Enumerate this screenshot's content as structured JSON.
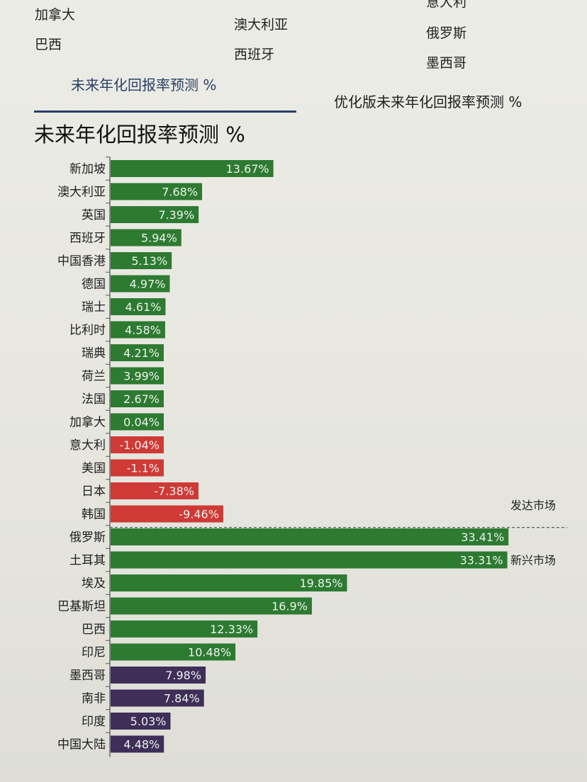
{
  "legend_labels": [
    {
      "text": "加拿大",
      "col": 0,
      "row": 0
    },
    {
      "text": "巴西",
      "col": 0,
      "row": 1
    },
    {
      "text": "澳大利亚",
      "col": 1,
      "row": 0
    },
    {
      "text": "西班牙",
      "col": 1,
      "row": 1
    },
    {
      "text": "意大利",
      "col": 2,
      "row": -1
    },
    {
      "text": "俄罗斯",
      "col": 2,
      "row": 0
    },
    {
      "text": "墨西哥",
      "col": 2,
      "row": 1
    }
  ],
  "tabs": {
    "active": "未来年化回报率预测 %",
    "inactive": "优化版未来年化回报率预测 %"
  },
  "colors": {
    "positive": "#2d7a31",
    "negative": "#cf3a36",
    "purple": "#3f2e58",
    "axis": "#555555",
    "tab_active": "#2a3f66"
  },
  "chart_data": {
    "type": "bar",
    "orientation": "horizontal",
    "title": "未来年化回报率预测 %",
    "unit": "%",
    "groups": [
      {
        "name": "发达市场",
        "start": 0,
        "end": 15
      },
      {
        "name": "新兴市场",
        "start": 16,
        "end": 25
      }
    ],
    "categories": [
      "新加坡",
      "澳大利亚",
      "英国",
      "西班牙",
      "中国香港",
      "德国",
      "瑞士",
      "比利时",
      "瑞典",
      "荷兰",
      "法国",
      "加拿大",
      "意大利",
      "美国",
      "日本",
      "韩国",
      "俄罗斯",
      "土耳其",
      "埃及",
      "巴基斯坦",
      "巴西",
      "印尼",
      "墨西哥",
      "南非",
      "印度",
      "中国大陆"
    ],
    "values": [
      13.67,
      7.68,
      7.39,
      5.94,
      5.13,
      4.97,
      4.61,
      4.58,
      4.21,
      3.99,
      2.67,
      0.04,
      -1.04,
      -1.1,
      -7.38,
      -9.46,
      33.41,
      33.31,
      19.85,
      16.9,
      12.33,
      10.48,
      7.98,
      7.84,
      5.03,
      4.48
    ],
    "value_labels": [
      "13.67%",
      "7.68%",
      "7.39%",
      "5.94%",
      "5.13%",
      "4.97%",
      "4.61%",
      "4.58%",
      "4.21%",
      "3.99%",
      "2.67%",
      "0.04%",
      "-1.04%",
      "-1.1%",
      "-7.38%",
      "-9.46%",
      "33.41%",
      "33.31%",
      "19.85%",
      "16.9%",
      "12.33%",
      "10.48%",
      "7.98%",
      "7.84%",
      "5.03%",
      "4.48%"
    ],
    "bar_colors": [
      "positive",
      "positive",
      "positive",
      "positive",
      "positive",
      "positive",
      "positive",
      "positive",
      "positive",
      "positive",
      "positive",
      "positive",
      "negative",
      "negative",
      "negative",
      "negative",
      "positive",
      "positive",
      "positive",
      "positive",
      "positive",
      "positive",
      "purple",
      "purple",
      "purple",
      "purple"
    ]
  }
}
